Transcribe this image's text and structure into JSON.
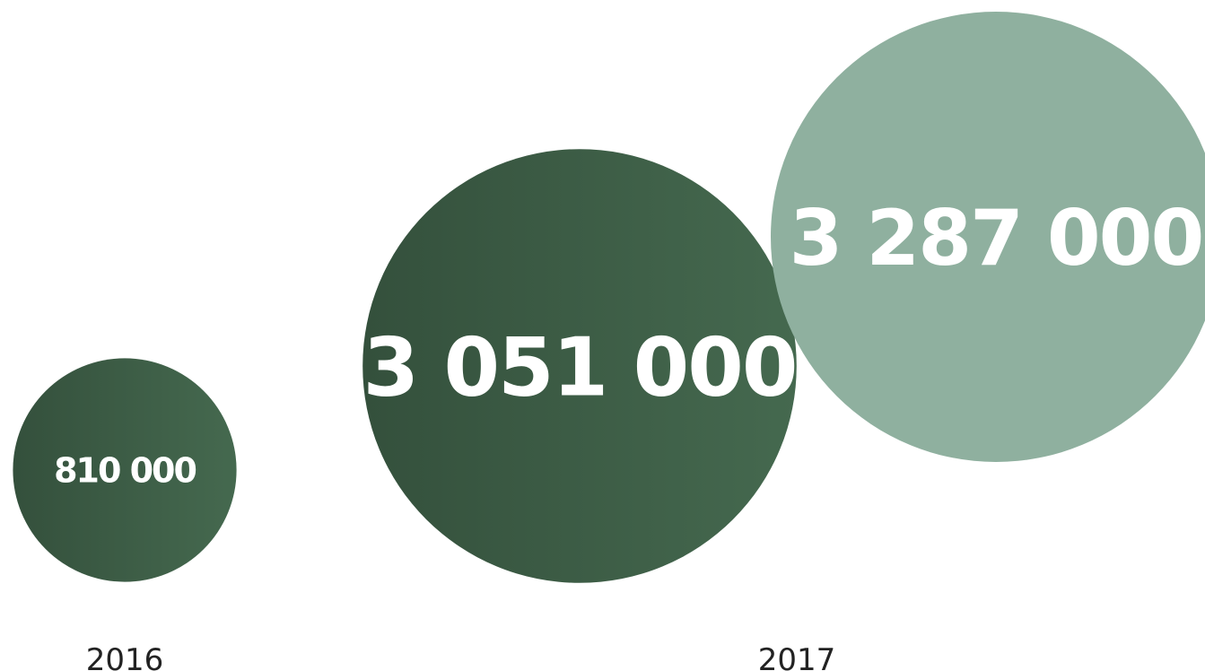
{
  "chart_data": {
    "type": "bubble",
    "title": "",
    "xlabel": "",
    "ylabel": "",
    "categories": [
      "2016",
      "2017"
    ],
    "points": [
      {
        "category": "2016",
        "value": 810000,
        "label": "810 000",
        "color": "#3e5e46"
      },
      {
        "category": "2017",
        "value": 3051000,
        "label": "3 051 000",
        "color": "#3e5e46"
      },
      {
        "category": "2017",
        "value": 3287000,
        "label": "3 287 000",
        "color": "#8fb09f"
      }
    ],
    "grid": false,
    "legend": "none"
  },
  "colors": {
    "dark_green": "#3e5e46",
    "light_green": "#8fb09f",
    "background": "#ffffff"
  }
}
